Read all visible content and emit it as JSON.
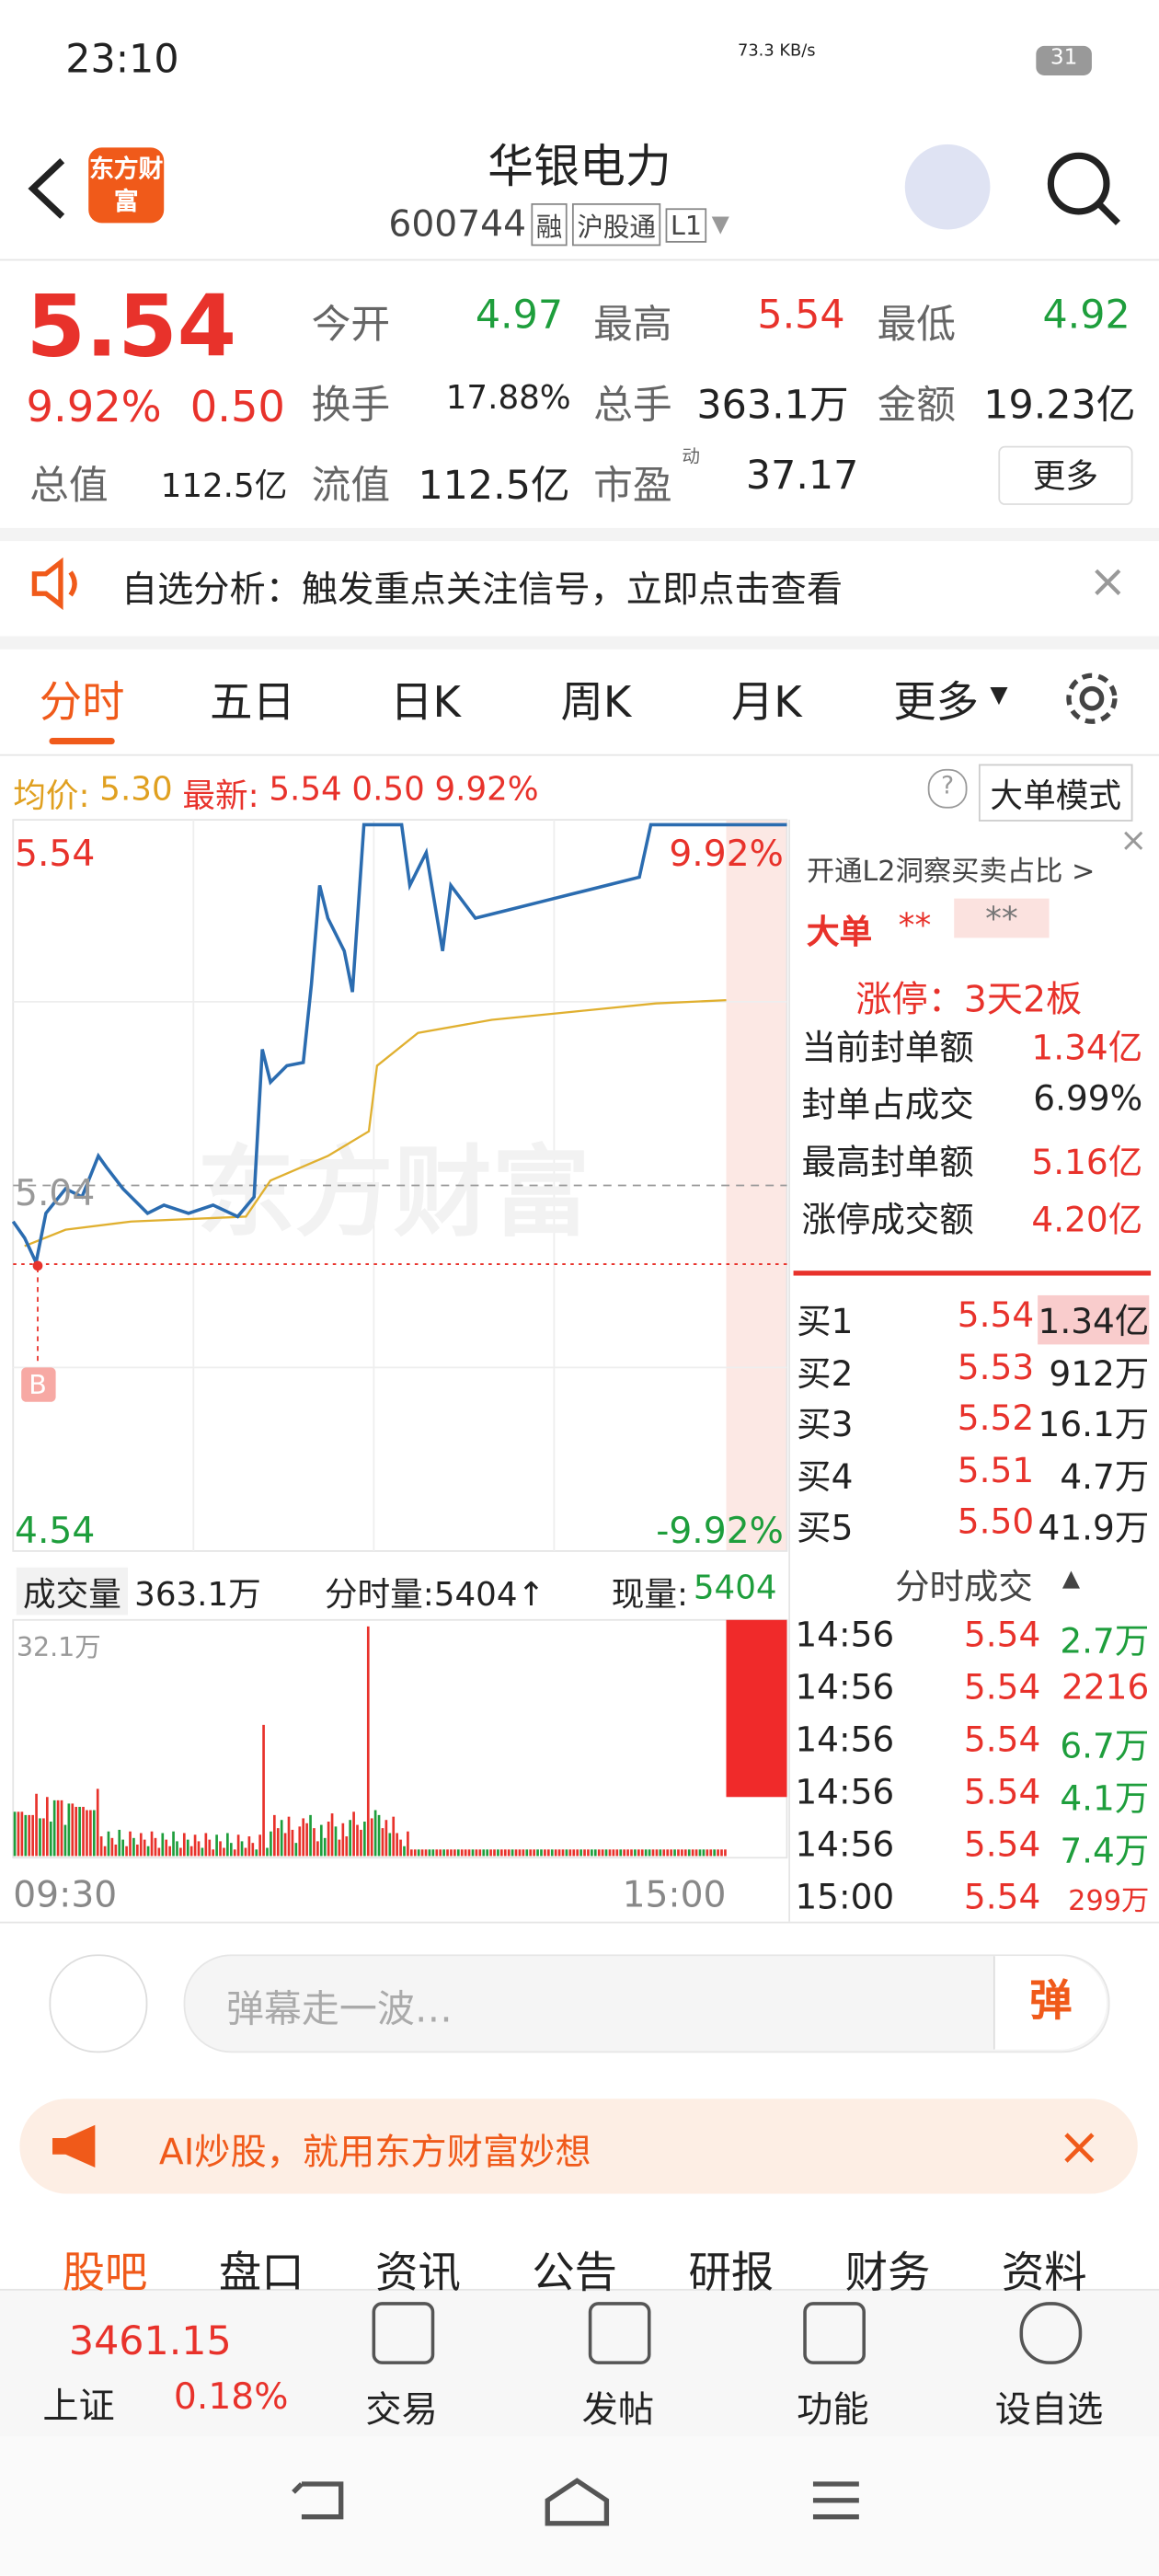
{
  "status_bar": {
    "time": "23:10",
    "net_speed": "73.3 KB/s",
    "battery": "31"
  },
  "header": {
    "logo": "东方财富",
    "title": "华银电力",
    "code": "600744",
    "tags": [
      "融",
      "沪股通",
      "L1"
    ]
  },
  "quote": {
    "price": "5.54",
    "change_pct": "9.92%",
    "change": "0.50",
    "fields": [
      {
        "label": "今开",
        "value": "4.97"
      },
      {
        "label": "最高",
        "value": "5.54"
      },
      {
        "label": "最低",
        "value": "4.92"
      },
      {
        "label": "换手",
        "value": "17.88%"
      },
      {
        "label": "总手",
        "value": "363.1万"
      },
      {
        "label": "金额",
        "value": "19.23亿"
      },
      {
        "label": "总值",
        "value": "112.5亿"
      },
      {
        "label": "流值",
        "value": "112.5亿"
      },
      {
        "label": "市盈",
        "value": "37.17"
      }
    ],
    "pe_sup": "动",
    "more": "更多"
  },
  "notice": "自选分析：触发重点关注信号，立即点击查看",
  "tabs": [
    "分时",
    "五日",
    "日K",
    "周K",
    "月K",
    "更多"
  ],
  "info_bar": {
    "avg_label": "均价:",
    "avg": "5.30",
    "latest_label": "最新:",
    "latest": "5.54",
    "change": "0.50",
    "change_pct": "9.92%",
    "mode": "大单模式"
  },
  "chart": {
    "y_top": "5.54",
    "y_mid": "5.04",
    "y_bottom": "4.54",
    "pct_top": "9.92%",
    "pct_bottom": "-9.92%",
    "marker": "B",
    "watermark": "东方财富"
  },
  "volume": {
    "label": "成交量",
    "total": "363.1万",
    "tick_vol": "分时量:5404↑",
    "now_label": "现量:",
    "now": "5404",
    "max": "32.1万",
    "times": [
      "09:30",
      "15:00"
    ]
  },
  "side": {
    "l2": "开通L2洞察买卖占比 >",
    "big": "大单",
    "stars": [
      "**",
      "**"
    ],
    "limit": "涨停：3天2板",
    "stats": [
      [
        "当前封单额",
        "1.34亿"
      ],
      [
        "封单占成交",
        "6.99%"
      ],
      [
        "最高封单额",
        "5.16亿"
      ],
      [
        "涨停成交额",
        "4.20亿"
      ]
    ],
    "bids": [
      [
        "买1",
        "5.54",
        "1.34亿"
      ],
      [
        "买2",
        "5.53",
        "912万"
      ],
      [
        "买3",
        "5.52",
        "16.1万"
      ],
      [
        "买4",
        "5.51",
        "4.7万"
      ],
      [
        "买5",
        "5.50",
        "41.9万"
      ]
    ],
    "trades_title": "分时成交",
    "trades": [
      [
        "14:56",
        "5.54",
        "2.7万"
      ],
      [
        "14:56",
        "5.54",
        "2216"
      ],
      [
        "14:56",
        "5.54",
        "6.7万"
      ],
      [
        "14:56",
        "5.54",
        "4.1万"
      ],
      [
        "14:56",
        "5.54",
        "7.4万"
      ],
      [
        "15:00",
        "5.54",
        "299万"
      ]
    ]
  },
  "comment": {
    "placeholder": "弹幕走一波…",
    "button": "弹"
  },
  "ad": "AI炒股，就用东方财富妙想",
  "bottom_tabs": [
    "股吧",
    "盘口",
    "资讯",
    "公告",
    "研报",
    "财务",
    "资料"
  ],
  "nav": {
    "index_value": "3461.15",
    "index_name": "上证",
    "index_pct": "0.18%",
    "items": [
      "交易",
      "发帖",
      "功能",
      "设自选"
    ]
  }
}
